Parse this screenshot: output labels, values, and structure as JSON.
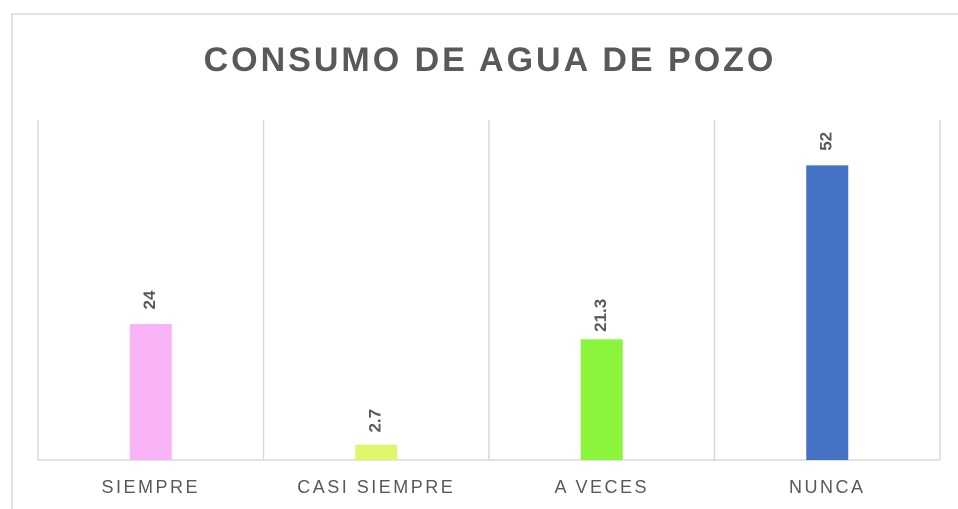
{
  "chart_data": {
    "type": "bar",
    "title": "CONSUMO DE AGUA DE POZO",
    "categories": [
      "SIEMPRE",
      "CASI SIEMPRE",
      "A VECES",
      "NUNCA"
    ],
    "values": [
      24,
      2.7,
      21.3,
      52
    ],
    "colors": [
      "#f7b3f5",
      "#dff56a",
      "#8af53b",
      "#4472c4"
    ],
    "ylim": [
      0,
      60
    ],
    "grid": true
  }
}
